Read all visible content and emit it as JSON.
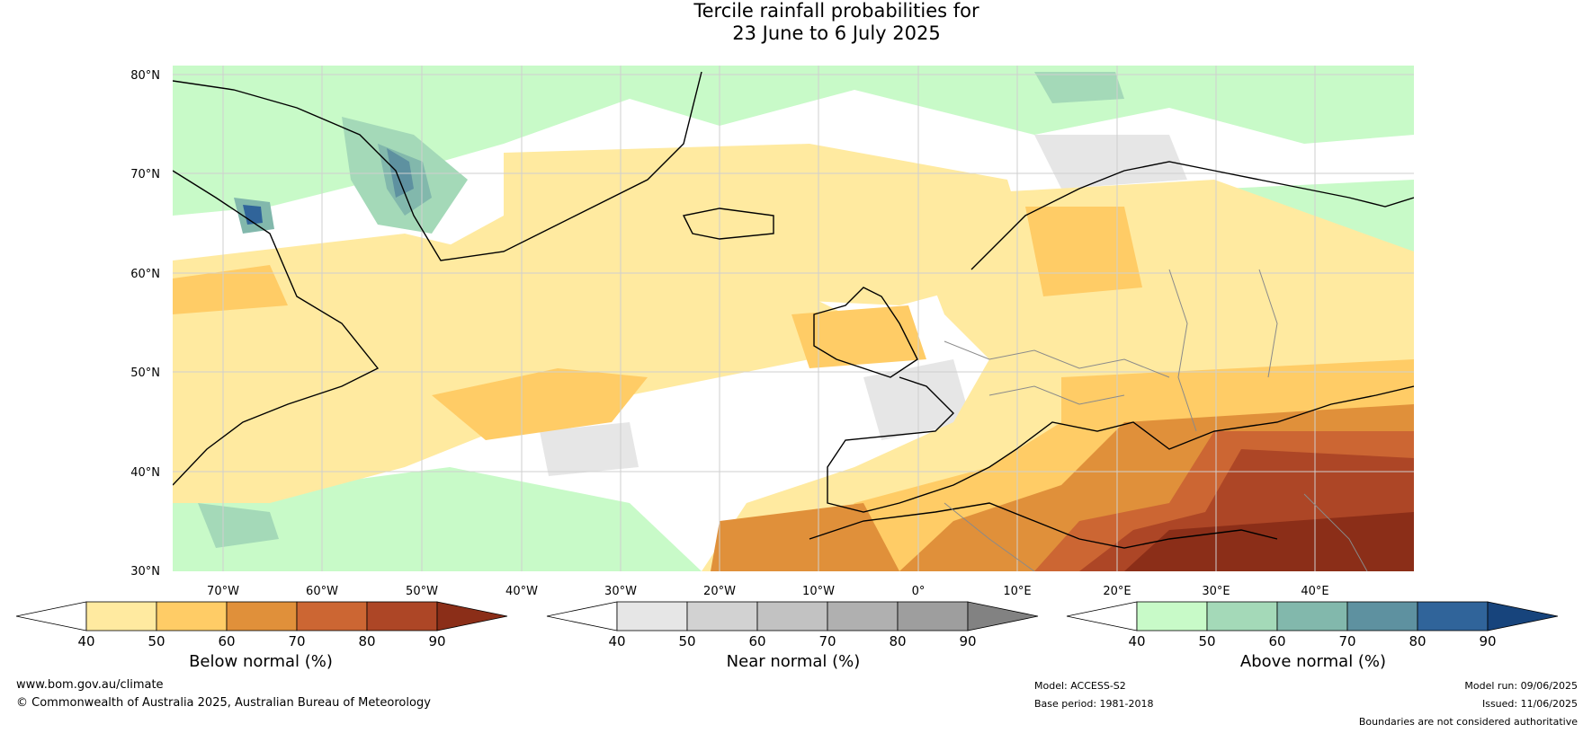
{
  "title": {
    "line1": "Tercile rainfall probabilities for",
    "line2": "23 June to 6 July 2025"
  },
  "map": {
    "lat_ticks": [
      "80°N",
      "70°N",
      "60°N",
      "50°N",
      "40°N",
      "30°N"
    ],
    "lon_ticks": [
      "70°W",
      "60°W",
      "50°W",
      "40°W",
      "30°W",
      "20°W",
      "10°W",
      "0°",
      "10°E",
      "20°E",
      "30°E",
      "40°E"
    ],
    "extent": {
      "lon_min": -85,
      "lon_max": 40,
      "lat_min": 30,
      "lat_max": 80
    },
    "colors": {
      "ocean_neutral": "#ffffff",
      "coastline": "#000000",
      "borders": "#8a8a8a",
      "grid": "#cfcfcf"
    }
  },
  "colorbars": [
    {
      "label": "Below normal (%)",
      "ticks": [
        "40",
        "50",
        "60",
        "70",
        "80",
        "90"
      ],
      "colors": [
        "#ffffff",
        "#ffeaa0",
        "#ffcc66",
        "#e0903a",
        "#cc6633",
        "#ad4626",
        "#8b2e18"
      ]
    },
    {
      "label": "Near normal (%)",
      "ticks": [
        "40",
        "50",
        "60",
        "70",
        "80",
        "90"
      ],
      "colors": [
        "#ffffff",
        "#e6e6e6",
        "#d2d2d2",
        "#c2c2c2",
        "#b0b0b0",
        "#9e9e9e",
        "#828282"
      ]
    },
    {
      "label": "Above normal (%)",
      "ticks": [
        "40",
        "50",
        "60",
        "70",
        "80",
        "90"
      ],
      "colors": [
        "#ffffff",
        "#c8fac8",
        "#a4d9b8",
        "#82b8ac",
        "#5e91a0",
        "#30649a",
        "#17447c"
      ]
    }
  ],
  "footer": {
    "website": "www.bom.gov.au/climate",
    "copyright": "© Commonwealth of Australia 2025, Australian Bureau of Meteorology",
    "model": "Model: ACCESS-S2",
    "base_period": "Base period: 1981-2018",
    "model_run": "Model run: 09/06/2025",
    "issued": "Issued: 11/06/2025",
    "disclaimer": "Boundaries are not considered authoritative"
  }
}
